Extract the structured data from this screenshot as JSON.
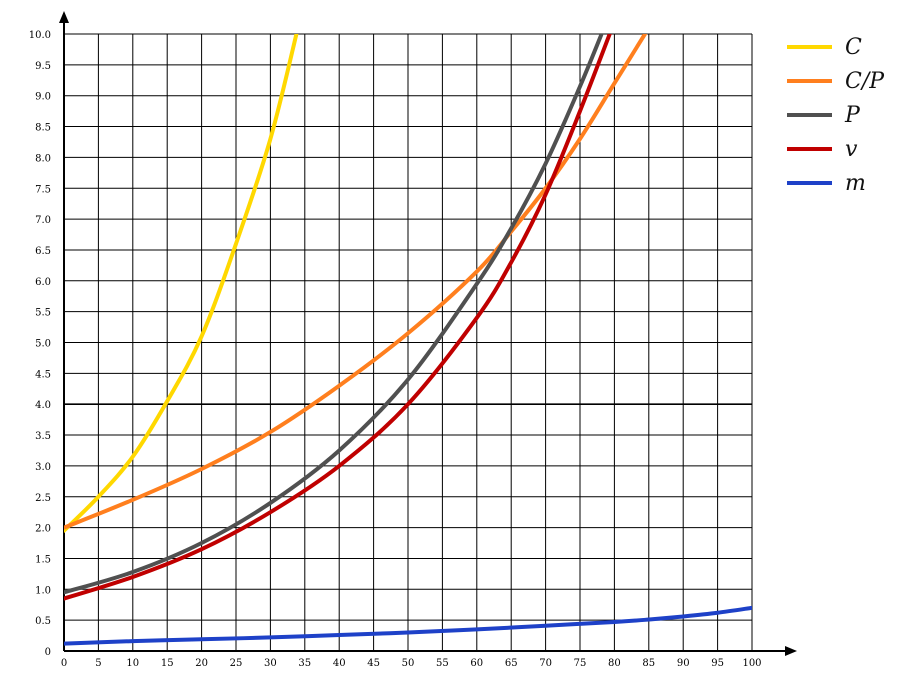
{
  "chart_data": {
    "type": "line",
    "title": "",
    "xlabel": "",
    "ylabel": "",
    "xlim": [
      0,
      100
    ],
    "ylim": [
      0,
      10
    ],
    "grid": true,
    "legend_position": "top-right",
    "x_ticks": [
      "0",
      "5",
      "10",
      "15",
      "20",
      "25",
      "30",
      "35",
      "40",
      "45",
      "50",
      "55",
      "60",
      "65",
      "70",
      "75",
      "80",
      "85",
      "90",
      "95",
      "100"
    ],
    "y_ticks": [
      "0",
      "0.5",
      "1.0",
      "1.5",
      "2.0",
      "2.5",
      "3.0",
      "3.5",
      "4.0",
      "4.5",
      "5.0",
      "5.5",
      "6.0",
      "6.5",
      "7.0",
      "7.5",
      "8.0",
      "8.5",
      "9.0",
      "9.5",
      "10.0"
    ],
    "series": [
      {
        "name": "C",
        "color": "#ffd800",
        "x": [
          0,
          5,
          10,
          15,
          20,
          25,
          30,
          34
        ],
        "y": [
          1.95,
          2.5,
          3.15,
          4.05,
          5.1,
          6.6,
          8.3,
          10.1
        ]
      },
      {
        "name": "C/P",
        "color": "#ff7f1e",
        "x": [
          0,
          10,
          20,
          30,
          40,
          50,
          60,
          65,
          70,
          75,
          80,
          85
        ],
        "y": [
          2.0,
          2.45,
          2.95,
          3.55,
          4.3,
          5.15,
          6.15,
          6.8,
          7.5,
          8.3,
          9.2,
          10.1
        ]
      },
      {
        "name": "P",
        "color": "#505050",
        "x": [
          0,
          10,
          20,
          30,
          40,
          50,
          60,
          65,
          70,
          75,
          78.5
        ],
        "y": [
          0.95,
          1.28,
          1.75,
          2.4,
          3.25,
          4.4,
          5.95,
          6.85,
          7.9,
          9.15,
          10.1
        ]
      },
      {
        "name": "v",
        "color": "#c00000",
        "x": [
          0,
          10,
          20,
          30,
          40,
          50,
          60,
          65,
          70,
          75,
          80
        ],
        "y": [
          0.85,
          1.2,
          1.65,
          2.25,
          3.0,
          4.0,
          5.4,
          6.3,
          7.4,
          8.75,
          10.2
        ]
      },
      {
        "name": "m",
        "color": "#1e41c8",
        "x": [
          0,
          10,
          20,
          30,
          40,
          50,
          60,
          70,
          80,
          85,
          90,
          95,
          100
        ],
        "y": [
          0.12,
          0.16,
          0.19,
          0.22,
          0.26,
          0.3,
          0.35,
          0.41,
          0.47,
          0.51,
          0.56,
          0.62,
          0.7
        ]
      }
    ]
  }
}
